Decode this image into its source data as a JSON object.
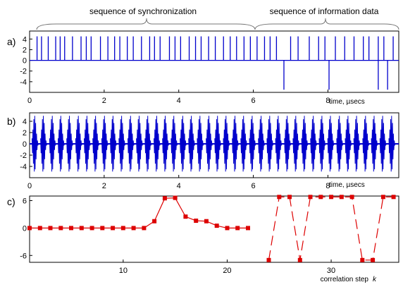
{
  "chart_data": [
    {
      "type": "line",
      "panel_label": "a)",
      "xlabel": "time, µsecs",
      "xlim": [
        0,
        9.9
      ],
      "ylim": [
        -6,
        5.5
      ],
      "x_ticks": [
        0,
        2,
        4,
        6,
        8
      ],
      "y_ticks": [
        4,
        2,
        0,
        -2,
        -4
      ],
      "series": [
        {
          "positive_pulse_times": [
            0.2,
            0.32,
            0.5,
            0.7,
            0.82,
            0.94,
            1.15,
            1.38,
            1.52,
            1.65,
            1.9,
            2.1,
            2.28,
            2.42,
            2.62,
            2.78,
            3.0,
            3.22,
            3.35,
            3.5,
            3.75,
            3.9,
            4.05,
            4.28,
            4.45,
            4.6,
            4.8,
            4.98,
            5.2,
            5.38,
            5.55,
            5.75,
            5.92,
            6.1,
            6.3,
            6.45,
            6.62,
            7.0,
            7.2,
            7.5,
            7.75,
            7.92,
            8.2,
            8.45,
            8.7,
            8.95,
            9.1,
            9.35,
            9.5,
            9.75
          ],
          "positive_pulse_value": 4.5,
          "negative_pulse_times": [
            6.82,
            8.03,
            9.35,
            9.6
          ],
          "negative_pulse_value": -5.5,
          "color": "#0000cc"
        }
      ],
      "annotations": [
        {
          "text": "sequence of synchronization",
          "x_range": [
            0,
            6.5
          ]
        },
        {
          "text": "sequence of information data",
          "x_range": [
            6.5,
            9.9
          ]
        }
      ]
    },
    {
      "type": "line",
      "panel_label": "b)",
      "xlabel": "time, µsecs",
      "xlim": [
        0,
        9.9
      ],
      "ylim": [
        -6,
        5.5
      ],
      "x_ticks": [
        0,
        2,
        4,
        6,
        8
      ],
      "y_ticks": [
        4,
        2,
        0,
        -2,
        -4
      ],
      "series": [
        {
          "burst_times": [
            0.15,
            0.38,
            0.62,
            0.85,
            1.08,
            1.32,
            1.55,
            1.78,
            2.02,
            2.25,
            2.48,
            2.72,
            2.95,
            3.18,
            3.42,
            3.65,
            3.88,
            4.12,
            4.35,
            4.58,
            4.82,
            5.05,
            5.28,
            5.52,
            5.75,
            5.98,
            6.22,
            6.45,
            6.68,
            6.92,
            7.15,
            7.38,
            7.62,
            7.85,
            8.08,
            8.32,
            8.55,
            8.78,
            9.02,
            9.25,
            9.48,
            9.72
          ],
          "burst_amplitude": 5,
          "color": "#0000cc"
        }
      ]
    },
    {
      "type": "line",
      "panel_label": "c)",
      "xlabel": "correlation step",
      "xlabel_symbol": "k",
      "xlim": [
        1,
        36.5
      ],
      "ylim": [
        -7.5,
        7
      ],
      "x_ticks": [
        10,
        20,
        30
      ],
      "y_ticks": [
        6,
        0,
        -6
      ],
      "series": [
        {
          "x": [
            1,
            2,
            3,
            4,
            5,
            6,
            7,
            8,
            9,
            10,
            11,
            12,
            13,
            14,
            15,
            16,
            17,
            18,
            19,
            20,
            21,
            22
          ],
          "y": [
            0,
            0,
            0,
            0,
            0,
            0,
            0,
            0,
            0,
            0,
            0,
            0,
            1.5,
            6.5,
            6.6,
            2.5,
            1.6,
            1.5,
            0.5,
            0,
            0,
            0
          ],
          "line": "solid",
          "color": "#dd0000"
        },
        {
          "x": [
            24,
            25,
            26,
            27,
            28,
            29,
            30,
            31,
            32,
            33,
            34,
            35,
            36
          ],
          "y": [
            -7,
            6.8,
            6.8,
            -7,
            6.8,
            6.8,
            6.8,
            6.8,
            6.8,
            -7,
            -7,
            6.8,
            6.8
          ],
          "line": "dashed",
          "color": "#dd0000"
        }
      ]
    }
  ]
}
